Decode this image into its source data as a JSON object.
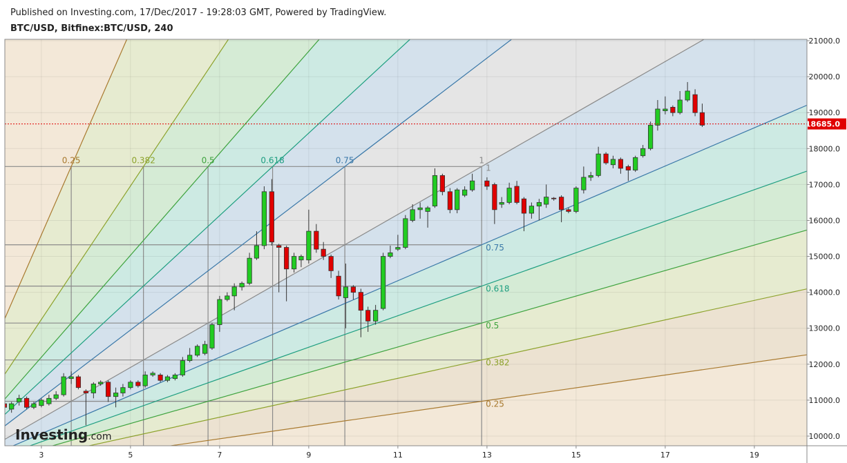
{
  "chart_data": {
    "type": "candlestick",
    "subtitle": "Published on Investing.com, 17/Dec/2017 - 19:28:03 GMT, Powered by TradingView.",
    "title": "BTC/USD, Bitfinex:BTC/USD, 240",
    "x": [
      2.17,
      2.33,
      2.5,
      2.67,
      2.83,
      3,
      3.17,
      3.33,
      3.5,
      3.67,
      3.83,
      4,
      4.17,
      4.33,
      4.5,
      4.67,
      4.83,
      5,
      5.17,
      5.33,
      5.5,
      5.67,
      5.83,
      6,
      6.17,
      6.33,
      6.5,
      6.67,
      6.83,
      7,
      7.17,
      7.33,
      7.5,
      7.67,
      7.83,
      8,
      8.17,
      8.33,
      8.5,
      8.67,
      8.83,
      9,
      9.17,
      9.33,
      9.5,
      9.67,
      9.83,
      10,
      10.17,
      10.33,
      10.5,
      10.67,
      10.83,
      11,
      11.17,
      11.33,
      11.5,
      11.67,
      11.83,
      12,
      12.17,
      12.33,
      12.5,
      12.67,
      13,
      13.17,
      13.33,
      13.5,
      13.67,
      13.83,
      14,
      14.17,
      14.33,
      14.5,
      14.67,
      14.83,
      15,
      15.17,
      15.33,
      15.5,
      15.67,
      15.83,
      16,
      16.17,
      16.33,
      16.5,
      16.67,
      16.83,
      17,
      17.17,
      17.33,
      17.5,
      17.67,
      17.83
    ],
    "open": [
      10900,
      10750,
      10950,
      11050,
      10800,
      10850,
      10900,
      11050,
      11150,
      11600,
      11650,
      11250,
      11200,
      11450,
      11500,
      11100,
      11200,
      11350,
      11500,
      11400,
      11700,
      11700,
      11550,
      11600,
      11700,
      12100,
      12250,
      12300,
      12450,
      13100,
      13800,
      13900,
      14150,
      14250,
      14950,
      15300,
      16800,
      15300,
      15250,
      14650,
      14900,
      14900,
      15700,
      15200,
      15000,
      14450,
      13850,
      14150,
      14000,
      13500,
      13200,
      13550,
      15000,
      15200,
      15250,
      16000,
      16300,
      16250,
      16400,
      17250,
      16800,
      16300,
      16700,
      16850,
      17100,
      17000,
      16450,
      16500,
      16950,
      16600,
      16200,
      16400,
      16450,
      16620,
      16650,
      16300,
      16250,
      16850,
      17200,
      17250,
      17850,
      17550,
      17700,
      17500,
      17400,
      17800,
      18000,
      18650,
      19050,
      19150,
      19000,
      19350,
      19500,
      19000
    ],
    "high": [
      11000,
      10950,
      11150,
      11100,
      10950,
      11050,
      11150,
      11250,
      11750,
      11800,
      11700,
      11300,
      11500,
      11550,
      11550,
      11350,
      11450,
      11550,
      11550,
      11800,
      11800,
      11750,
      11700,
      11750,
      12200,
      12450,
      12550,
      12650,
      13150,
      13900,
      14000,
      14250,
      14300,
      15100,
      15700,
      16950,
      17150,
      15350,
      15300,
      15100,
      15050,
      16300,
      15900,
      15400,
      15050,
      14600,
      14800,
      14200,
      14100,
      13600,
      13650,
      15100,
      15300,
      15600,
      16150,
      16450,
      16500,
      16400,
      17450,
      17300,
      16900,
      16900,
      16950,
      17300,
      17200,
      17050,
      16650,
      17050,
      17100,
      16650,
      16500,
      16600,
      17000,
      16650,
      16700,
      16350,
      16950,
      17500,
      17350,
      18050,
      17900,
      17800,
      17750,
      17550,
      17800,
      18100,
      18750,
      19350,
      19450,
      19200,
      19600,
      19850,
      19650,
      19250
    ],
    "low": [
      10700,
      10650,
      10850,
      10750,
      10750,
      10800,
      10850,
      11000,
      11100,
      11450,
      11300,
      10300,
      11050,
      11400,
      10950,
      10800,
      11100,
      11300,
      11350,
      11350,
      11650,
      11500,
      11500,
      11550,
      11650,
      12050,
      12200,
      12250,
      12400,
      12900,
      13750,
      13500,
      14050,
      14200,
      14900,
      15200,
      15300,
      14000,
      13750,
      14550,
      14700,
      14800,
      15100,
      14900,
      14400,
      13800,
      13000,
      13800,
      12750,
      12900,
      13100,
      13500,
      14950,
      15150,
      15200,
      15950,
      16050,
      15800,
      16350,
      16700,
      16200,
      16200,
      16650,
      16800,
      16850,
      15900,
      16350,
      16450,
      16450,
      15700,
      16050,
      16000,
      16350,
      16550,
      15950,
      16200,
      16200,
      16750,
      17100,
      17200,
      17550,
      17450,
      17300,
      17100,
      17350,
      17750,
      17950,
      18500,
      18950,
      18900,
      18950,
      19300,
      18900,
      18600
    ],
    "close": [
      10800,
      10900,
      11050,
      10800,
      10900,
      11000,
      11050,
      11150,
      11650,
      11650,
      11350,
      11200,
      11450,
      11500,
      11100,
      11200,
      11350,
      11500,
      11400,
      11700,
      11750,
      11550,
      11650,
      11700,
      12100,
      12250,
      12500,
      12550,
      13100,
      13800,
      13900,
      14150,
      14250,
      14950,
      15300,
      16800,
      15400,
      15250,
      14650,
      15000,
      15000,
      15700,
      15200,
      15000,
      14600,
      13900,
      14150,
      14000,
      13500,
      13200,
      13500,
      15000,
      15100,
      15250,
      16050,
      16300,
      16350,
      16350,
      17250,
      16800,
      16300,
      16850,
      16850,
      17100,
      16950,
      16300,
      16500,
      16900,
      16500,
      16200,
      16400,
      16500,
      16650,
      16600,
      16300,
      16250,
      16900,
      17200,
      17250,
      17850,
      17600,
      17700,
      17450,
      17400,
      17750,
      18000,
      18650,
      19100,
      19100,
      19000,
      19350,
      19600,
      19000,
      18650
    ],
    "up_color": "#22cc22",
    "down_color": "#e00000",
    "xlim": [
      2.18,
      20.18
    ],
    "ylim": [
      9731,
      21039
    ],
    "xticks": [
      3,
      5,
      7,
      9,
      11,
      13,
      15,
      17,
      19
    ],
    "yticks": [
      {
        "value": 10000,
        "label": "10000.0"
      },
      {
        "value": 11000,
        "label": "11000.0"
      },
      {
        "value": 12000,
        "label": "12000.0"
      },
      {
        "value": 13000,
        "label": "13000.0"
      },
      {
        "value": 14000,
        "label": "14000.0"
      },
      {
        "value": 15000,
        "label": "15000.0"
      },
      {
        "value": 16000,
        "label": "16000.0"
      },
      {
        "value": 17000,
        "label": "17000.0"
      },
      {
        "value": 18000,
        "label": "18000.0"
      },
      {
        "value": 19000,
        "label": "19000.0"
      },
      {
        "value": 20000,
        "label": "20000.0"
      },
      {
        "value": 21000,
        "label": "21000.0"
      }
    ],
    "grid": true,
    "last_price": {
      "value": 18685,
      "label": "18685.0",
      "color": "#e00000"
    },
    "fan": {
      "start": {
        "x": 0.6,
        "y": 8790
      },
      "end": {
        "x": 12.88,
        "y": 17500
      },
      "outer_color": "#c8944f",
      "levels": [
        {
          "level": 0.25,
          "color": "#a8792e"
        },
        {
          "level": 0.382,
          "color": "#8ca22a"
        },
        {
          "level": 0.5,
          "color": "#3ea33e"
        },
        {
          "level": 0.618,
          "color": "#1d9e80"
        },
        {
          "level": 0.75,
          "color": "#3a78a8"
        },
        {
          "level": 1,
          "color": "#8a8a8a"
        }
      ]
    },
    "watermark": {
      "brand": "Investing",
      "suffix": ".com"
    }
  }
}
